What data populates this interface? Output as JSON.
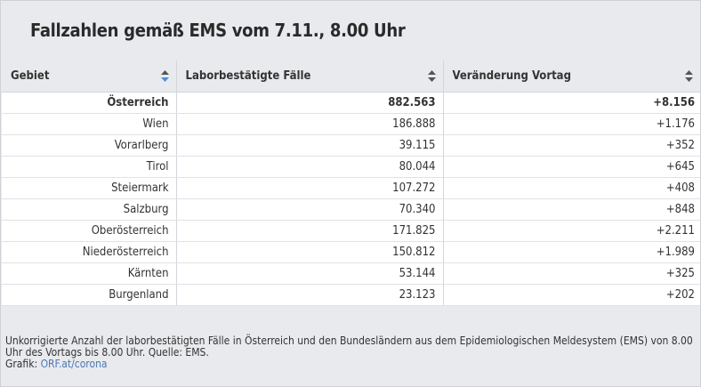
{
  "title": "Fallzahlen gemäß EMS vom 7.11., 8.00 Uhr",
  "table": {
    "headers": [
      "Gebiet",
      "Laborbestätigte Fälle",
      "Veränderung Vortag"
    ],
    "rows": [
      [
        "Österreich",
        "882.563",
        "+8.156"
      ],
      [
        "Wien",
        "186.888",
        "+1.176"
      ],
      [
        "Vorarlberg",
        "39.115",
        "+352"
      ],
      [
        "Tirol",
        "80.044",
        "+645"
      ],
      [
        "Steiermark",
        "107.272",
        "+408"
      ],
      [
        "Salzburg",
        "70.340",
        "+848"
      ],
      [
        "Oberösterreich",
        "171.825",
        "+2.211"
      ],
      [
        "Niederösterreich",
        "150.812",
        "+1.989"
      ],
      [
        "Kärnten",
        "53.144",
        "+325"
      ],
      [
        "Burgenland",
        "23.123",
        "+202"
      ]
    ]
  },
  "footer": {
    "note": "Unkorrigierte Anzahl der laborbestätigten Fälle in Österreich und den Bundesländern aus dem Epidemiologischen Meldesystem (EMS) von 8.00 Uhr des Vortags bis 8.00 Uhr. Quelle: EMS.",
    "source_label": "Grafik:",
    "source_link": "ORF.at/corona"
  },
  "colors": {
    "active_sort": "#4a90d9",
    "inactive_sort": "#555555",
    "link": "#4a78b5"
  }
}
